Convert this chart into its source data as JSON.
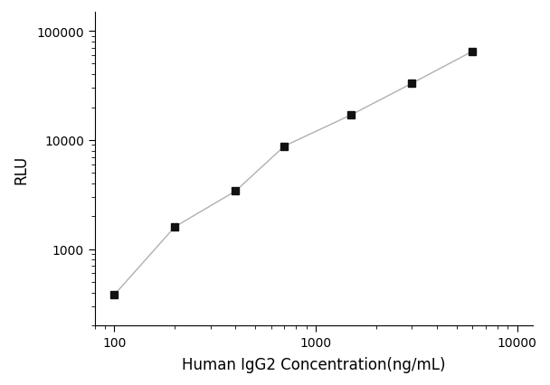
{
  "x": [
    100,
    200,
    400,
    700,
    1500,
    3000,
    6000
  ],
  "y": [
    380,
    1600,
    3400,
    8800,
    17000,
    33000,
    65000
  ],
  "xlabel": "Human IgG2 Concentration(ng/mL)",
  "ylabel": "RLU",
  "xlim": [
    80,
    12000
  ],
  "ylim": [
    200,
    150000
  ],
  "xticks": [
    100,
    1000,
    10000
  ],
  "yticks": [
    1000,
    10000,
    100000
  ],
  "line_color": "#b0b0b0",
  "marker_color": "#111111",
  "marker": "s",
  "marker_size": 6,
  "line_width": 1.0,
  "background_color": "#ffffff",
  "xlabel_fontsize": 12,
  "ylabel_fontsize": 12,
  "tick_fontsize": 10,
  "spine_color": "#000000"
}
